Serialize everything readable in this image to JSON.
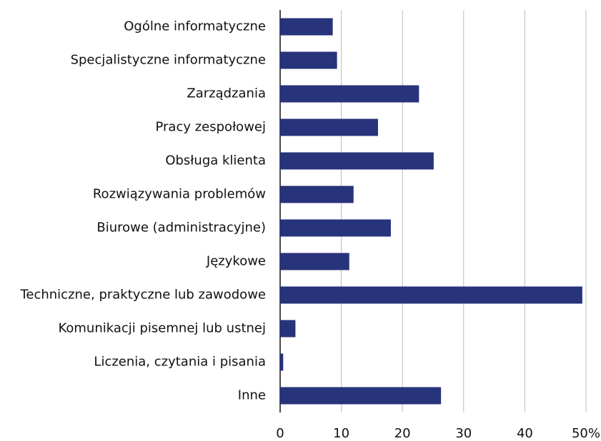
{
  "chart_data": {
    "type": "hbar",
    "categories": [
      "Ogólne informatyczne",
      "Specjalistyczne informatyczne",
      "Zarządzania",
      "Pracy zespołowej",
      "Obsługa klienta",
      "Rozwiązywania problemów",
      "Biurowe (administracyjne)",
      "Językowe",
      "Techniczne, praktyczne lub zawodowe",
      "Komunikacji pisemnej lub ustnej",
      "Liczenia, czytania i pisania",
      "Inne"
    ],
    "values": [
      8.6,
      9.3,
      22.7,
      16.0,
      25.1,
      12.0,
      18.1,
      11.3,
      49.4,
      2.5,
      0.5,
      26.3
    ],
    "color": "#27337a",
    "xlim": [
      0,
      50
    ],
    "xticks": [
      0,
      10,
      20,
      30,
      40,
      {
        "value": 50,
        "label": "50%"
      }
    ],
    "grid": true
  }
}
